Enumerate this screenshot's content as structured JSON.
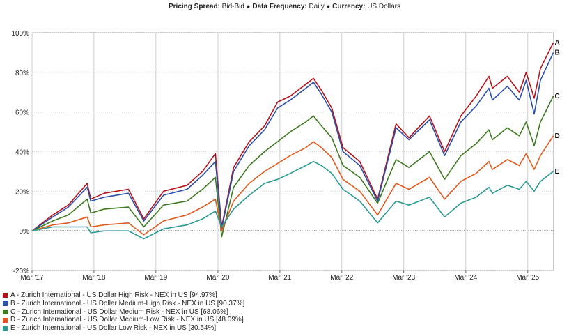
{
  "header": {
    "spread_label": "Pricing Spread:",
    "spread_value": "Bid-Bid",
    "freq_label": "Data Frequency:",
    "freq_value": "Daily",
    "currency_label": "Currency:",
    "currency_value": "US Dollars"
  },
  "chart_data": {
    "type": "line",
    "y_unit": "%",
    "ylim": [
      -20,
      100
    ],
    "yticks": [
      -20,
      0,
      20,
      40,
      60,
      80,
      100
    ],
    "ytick_labels": [
      "-20%",
      "0%",
      "20%",
      "40%",
      "60%",
      "80%",
      "100%"
    ],
    "xlim": [
      "2017-03-01",
      "2025-08-01"
    ],
    "xticks": [
      "2017-03-01",
      "2018-03-01",
      "2019-03-01",
      "2020-03-01",
      "2021-03-01",
      "2022-03-01",
      "2023-03-01",
      "2024-03-01",
      "2025-03-01"
    ],
    "xtick_labels": [
      "Mar '17",
      "Mar '18",
      "Mar '19",
      "Mar '20",
      "Mar '21",
      "Mar '22",
      "Mar '23",
      "Mar '24",
      "Mar '25"
    ],
    "grid": true,
    "zero_line": "dotted",
    "legend_position": "bottom-left",
    "series": [
      {
        "id": "A",
        "name": "A - Zurich International - US Dollar High Risk - NEX in US [94.97%]",
        "color": "#b5121b",
        "points": [
          [
            "2017-03-01",
            0
          ],
          [
            "2017-07-01",
            8
          ],
          [
            "2017-10-01",
            13
          ],
          [
            "2018-01-20",
            24
          ],
          [
            "2018-02-10",
            16
          ],
          [
            "2018-05-01",
            19
          ],
          [
            "2018-09-20",
            21
          ],
          [
            "2018-12-20",
            6
          ],
          [
            "2019-04-15",
            20
          ],
          [
            "2019-09-01",
            23
          ],
          [
            "2019-12-01",
            30
          ],
          [
            "2020-02-15",
            39
          ],
          [
            "2020-03-23",
            2
          ],
          [
            "2020-06-01",
            32
          ],
          [
            "2020-09-01",
            45
          ],
          [
            "2020-12-01",
            53
          ],
          [
            "2021-02-15",
            65
          ],
          [
            "2021-05-01",
            68
          ],
          [
            "2021-08-01",
            74
          ],
          [
            "2021-09-15",
            77
          ],
          [
            "2021-11-01",
            71
          ],
          [
            "2022-01-01",
            62
          ],
          [
            "2022-03-08",
            42
          ],
          [
            "2022-06-15",
            35
          ],
          [
            "2022-09-28",
            16
          ],
          [
            "2023-01-15",
            54
          ],
          [
            "2023-04-01",
            47
          ],
          [
            "2023-07-31",
            58
          ],
          [
            "2023-10-28",
            40
          ],
          [
            "2024-02-01",
            58
          ],
          [
            "2024-05-01",
            68
          ],
          [
            "2024-07-15",
            78
          ],
          [
            "2024-08-05",
            72
          ],
          [
            "2024-11-01",
            78
          ],
          [
            "2025-01-10",
            70
          ],
          [
            "2025-02-20",
            80
          ],
          [
            "2025-04-08",
            67
          ],
          [
            "2025-05-15",
            82
          ],
          [
            "2025-07-30",
            95
          ]
        ]
      },
      {
        "id": "B",
        "name": "B - Zurich International - US Dollar Medium-High Risk - NEX in US [90.37%]",
        "color": "#2b4fa8",
        "points": [
          [
            "2017-03-01",
            0
          ],
          [
            "2017-07-01",
            7
          ],
          [
            "2017-10-01",
            12
          ],
          [
            "2018-01-20",
            22
          ],
          [
            "2018-02-10",
            15
          ],
          [
            "2018-05-01",
            17
          ],
          [
            "2018-09-20",
            19
          ],
          [
            "2018-12-20",
            5
          ],
          [
            "2019-04-15",
            18
          ],
          [
            "2019-09-01",
            21
          ],
          [
            "2019-12-01",
            28
          ],
          [
            "2020-02-15",
            35
          ],
          [
            "2020-03-23",
            1
          ],
          [
            "2020-06-01",
            30
          ],
          [
            "2020-09-01",
            43
          ],
          [
            "2020-12-01",
            51
          ],
          [
            "2021-02-15",
            62
          ],
          [
            "2021-05-01",
            66
          ],
          [
            "2021-08-01",
            72
          ],
          [
            "2021-09-15",
            75
          ],
          [
            "2021-11-01",
            69
          ],
          [
            "2022-01-01",
            60
          ],
          [
            "2022-03-08",
            40
          ],
          [
            "2022-06-15",
            33
          ],
          [
            "2022-09-28",
            15
          ],
          [
            "2023-01-15",
            52
          ],
          [
            "2023-04-01",
            46
          ],
          [
            "2023-07-31",
            56
          ],
          [
            "2023-10-28",
            38
          ],
          [
            "2024-02-01",
            55
          ],
          [
            "2024-05-01",
            63
          ],
          [
            "2024-07-15",
            72
          ],
          [
            "2024-08-05",
            66
          ],
          [
            "2024-11-01",
            73
          ],
          [
            "2025-01-10",
            66
          ],
          [
            "2025-02-20",
            76
          ],
          [
            "2025-04-08",
            59
          ],
          [
            "2025-05-15",
            76
          ],
          [
            "2025-07-30",
            90
          ]
        ]
      },
      {
        "id": "C",
        "name": "C - Zurich International - US Dollar Medium Risk - NEX in US [68.06%]",
        "color": "#3d7a1f",
        "points": [
          [
            "2017-03-01",
            0
          ],
          [
            "2017-07-01",
            5
          ],
          [
            "2017-10-01",
            8
          ],
          [
            "2018-01-20",
            16
          ],
          [
            "2018-02-10",
            9
          ],
          [
            "2018-05-01",
            11
          ],
          [
            "2018-09-20",
            12
          ],
          [
            "2018-12-20",
            2
          ],
          [
            "2019-04-15",
            13
          ],
          [
            "2019-09-01",
            15
          ],
          [
            "2019-12-01",
            21
          ],
          [
            "2020-02-15",
            27
          ],
          [
            "2020-03-23",
            -3
          ],
          [
            "2020-06-01",
            22
          ],
          [
            "2020-09-01",
            33
          ],
          [
            "2020-12-01",
            40
          ],
          [
            "2021-02-15",
            45
          ],
          [
            "2021-05-01",
            50
          ],
          [
            "2021-08-01",
            55
          ],
          [
            "2021-09-15",
            58
          ],
          [
            "2021-11-01",
            53
          ],
          [
            "2022-01-01",
            47
          ],
          [
            "2022-03-08",
            33
          ],
          [
            "2022-06-15",
            27
          ],
          [
            "2022-09-28",
            14
          ],
          [
            "2023-01-15",
            36
          ],
          [
            "2023-04-01",
            32
          ],
          [
            "2023-07-31",
            40
          ],
          [
            "2023-10-28",
            26
          ],
          [
            "2024-02-01",
            38
          ],
          [
            "2024-05-01",
            44
          ],
          [
            "2024-07-15",
            51
          ],
          [
            "2024-08-05",
            46
          ],
          [
            "2024-11-01",
            52
          ],
          [
            "2025-01-10",
            48
          ],
          [
            "2025-02-20",
            55
          ],
          [
            "2025-04-08",
            43
          ],
          [
            "2025-05-15",
            55
          ],
          [
            "2025-07-30",
            68
          ]
        ]
      },
      {
        "id": "D",
        "name": "D - Zurich International - US Dollar Medium-Low Risk - NEX in US [48.09%]",
        "color": "#e05a1e",
        "points": [
          [
            "2017-03-01",
            0
          ],
          [
            "2017-07-01",
            3
          ],
          [
            "2017-10-01",
            4
          ],
          [
            "2018-01-20",
            7
          ],
          [
            "2018-02-10",
            2
          ],
          [
            "2018-05-01",
            3
          ],
          [
            "2018-09-20",
            4
          ],
          [
            "2018-12-20",
            -2
          ],
          [
            "2019-04-15",
            5
          ],
          [
            "2019-09-01",
            8
          ],
          [
            "2019-12-01",
            12
          ],
          [
            "2020-02-15",
            16
          ],
          [
            "2020-03-23",
            0
          ],
          [
            "2020-06-01",
            15
          ],
          [
            "2020-09-01",
            24
          ],
          [
            "2020-12-01",
            30
          ],
          [
            "2021-02-15",
            34
          ],
          [
            "2021-05-01",
            38
          ],
          [
            "2021-08-01",
            42
          ],
          [
            "2021-09-15",
            45
          ],
          [
            "2021-11-01",
            42
          ],
          [
            "2022-01-01",
            37
          ],
          [
            "2022-03-08",
            26
          ],
          [
            "2022-06-15",
            20
          ],
          [
            "2022-09-28",
            8
          ],
          [
            "2023-01-15",
            24
          ],
          [
            "2023-04-01",
            21
          ],
          [
            "2023-07-31",
            27
          ],
          [
            "2023-10-28",
            16
          ],
          [
            "2024-02-01",
            25
          ],
          [
            "2024-05-01",
            29
          ],
          [
            "2024-07-15",
            35
          ],
          [
            "2024-08-05",
            31
          ],
          [
            "2024-11-01",
            36
          ],
          [
            "2025-01-10",
            33
          ],
          [
            "2025-02-20",
            39
          ],
          [
            "2025-04-08",
            31
          ],
          [
            "2025-05-15",
            38
          ],
          [
            "2025-07-30",
            48
          ]
        ]
      },
      {
        "id": "E",
        "name": "E - Zurich International - US Dollar Low Risk - NEX in US [30.54%]",
        "color": "#2a9a93",
        "points": [
          [
            "2017-03-01",
            0
          ],
          [
            "2017-07-01",
            2
          ],
          [
            "2017-10-01",
            2
          ],
          [
            "2018-01-20",
            2
          ],
          [
            "2018-02-10",
            -1
          ],
          [
            "2018-05-01",
            0
          ],
          [
            "2018-09-20",
            0
          ],
          [
            "2018-12-20",
            -4
          ],
          [
            "2019-04-15",
            1
          ],
          [
            "2019-09-01",
            3
          ],
          [
            "2019-12-01",
            6
          ],
          [
            "2020-02-15",
            10
          ],
          [
            "2020-03-23",
            2
          ],
          [
            "2020-06-01",
            11
          ],
          [
            "2020-09-01",
            18
          ],
          [
            "2020-12-01",
            24
          ],
          [
            "2021-02-15",
            26
          ],
          [
            "2021-05-01",
            29
          ],
          [
            "2021-08-01",
            33
          ],
          [
            "2021-09-15",
            35
          ],
          [
            "2021-11-01",
            33
          ],
          [
            "2022-01-01",
            29
          ],
          [
            "2022-03-08",
            21
          ],
          [
            "2022-06-15",
            15
          ],
          [
            "2022-09-28",
            4
          ],
          [
            "2023-01-15",
            15
          ],
          [
            "2023-04-01",
            13
          ],
          [
            "2023-07-31",
            17
          ],
          [
            "2023-10-28",
            7
          ],
          [
            "2024-02-01",
            14
          ],
          [
            "2024-05-01",
            17
          ],
          [
            "2024-07-15",
            22
          ],
          [
            "2024-08-05",
            19
          ],
          [
            "2024-11-01",
            23
          ],
          [
            "2025-01-10",
            21
          ],
          [
            "2025-02-20",
            25
          ],
          [
            "2025-04-08",
            20
          ],
          [
            "2025-05-15",
            25
          ],
          [
            "2025-07-30",
            30
          ]
        ]
      }
    ]
  }
}
